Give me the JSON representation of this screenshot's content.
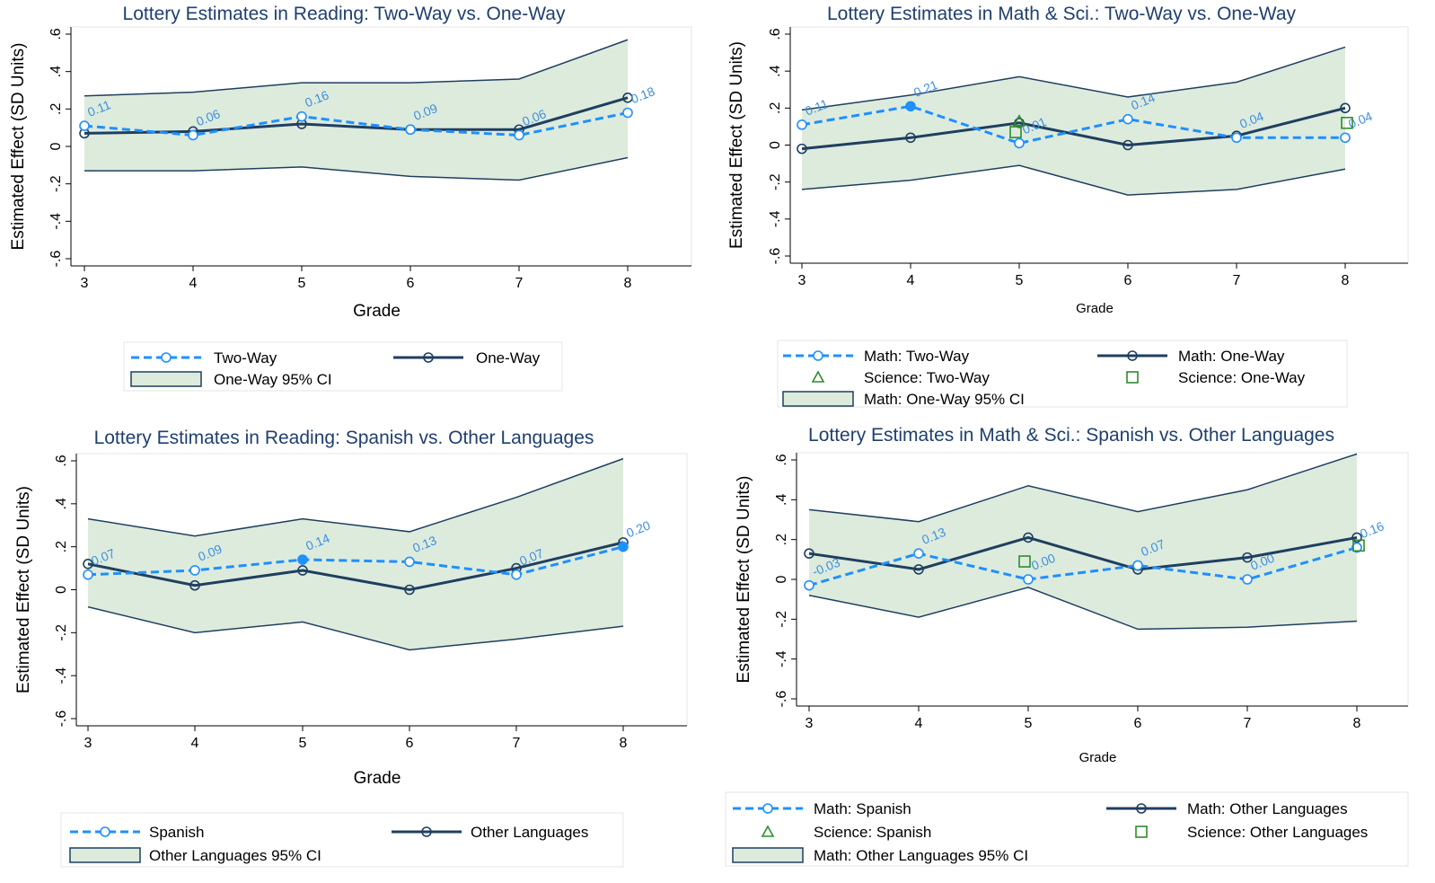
{
  "colors": {
    "two_way": "#1e90ff",
    "one_way": "#1f3f5f",
    "ci_fill": "#ddebdd",
    "ci_stroke": "#1f3f5f",
    "science_two": "#2e8b2e",
    "science_one": "#2e8b2e",
    "title": "#1f3f6f",
    "label": "#3c8fe0"
  },
  "chart_data": [
    {
      "type": "line",
      "title": "Lottery Estimates in Reading: Two-Way vs. One-Way",
      "xlabel": "Grade",
      "ylabel": "Estimated Effect (SD Units)",
      "ylim": [
        -0.6,
        0.6
      ],
      "yticks": [
        "-.6",
        "-.4",
        "-.2",
        "0",
        ".2",
        ".4",
        ".6"
      ],
      "x": [
        3,
        4,
        5,
        6,
        7,
        8
      ],
      "series": [
        {
          "name": "Two-Way",
          "role": "dashed",
          "values": [
            0.11,
            0.06,
            0.16,
            0.09,
            0.06,
            0.18
          ],
          "labels": [
            "0.11",
            "0.06",
            "0.16",
            "0.09",
            "0.06",
            "0.18"
          ],
          "filled": [
            false,
            false,
            false,
            false,
            false,
            false
          ]
        },
        {
          "name": "One-Way",
          "role": "solid",
          "values": [
            0.07,
            0.08,
            0.12,
            0.09,
            0.09,
            0.26
          ]
        }
      ],
      "ci": {
        "name": "One-Way 95% CI",
        "upper": [
          0.27,
          0.29,
          0.34,
          0.34,
          0.36,
          0.57
        ],
        "lower": [
          -0.13,
          -0.13,
          -0.11,
          -0.16,
          -0.18,
          -0.06
        ]
      },
      "legend": [
        {
          "type": "dashed",
          "label": "Two-Way"
        },
        {
          "type": "solid",
          "label": "One-Way"
        },
        {
          "type": "ci",
          "label": "One-Way 95% CI"
        }
      ]
    },
    {
      "type": "line",
      "title": "Lottery Estimates in Math & Sci.: Two-Way vs. One-Way",
      "xlabel": "Grade",
      "ylabel": "Estimated Effect (SD Units)",
      "ylim": [
        -0.6,
        0.6
      ],
      "yticks": [
        "-.6",
        "-.4",
        "-.2",
        "0",
        ".2",
        ".4",
        ".6"
      ],
      "x": [
        3,
        4,
        5,
        6,
        7,
        8
      ],
      "series": [
        {
          "name": "Math: Two-Way",
          "role": "dashed",
          "values": [
            0.11,
            0.21,
            0.01,
            0.14,
            0.04,
            0.04
          ],
          "labels": [
            "0.11",
            "0.21",
            "0.01",
            "0.14",
            "0.04",
            "0.04"
          ],
          "filled": [
            false,
            true,
            false,
            false,
            false,
            false
          ]
        },
        {
          "name": "Math: One-Way",
          "role": "solid",
          "values": [
            -0.02,
            0.04,
            0.12,
            0.0,
            0.05,
            0.2
          ]
        }
      ],
      "science": [
        {
          "name": "Science: Two-Way",
          "marker": "triangle",
          "x": [
            5
          ],
          "values": [
            0.13
          ]
        },
        {
          "name": "Science: One-Way",
          "marker": "square",
          "x": [
            5,
            8
          ],
          "values": [
            0.07,
            0.12
          ]
        }
      ],
      "ci": {
        "name": "Math: One-Way 95% CI",
        "upper": [
          0.19,
          0.27,
          0.37,
          0.26,
          0.34,
          0.53
        ],
        "lower": [
          -0.24,
          -0.19,
          -0.11,
          -0.27,
          -0.24,
          -0.13
        ]
      },
      "legend": [
        {
          "type": "dashed",
          "label": "Math: Two-Way"
        },
        {
          "type": "solid",
          "label": "Math: One-Way"
        },
        {
          "type": "triangle",
          "label": "Science: Two-Way"
        },
        {
          "type": "square",
          "label": "Science: One-Way"
        },
        {
          "type": "ci",
          "label": "Math: One-Way 95% CI"
        }
      ]
    },
    {
      "type": "line",
      "title": "Lottery Estimates in Reading: Spanish vs. Other Languages",
      "xlabel": "Grade",
      "ylabel": "Estimated Effect (SD Units)",
      "ylim": [
        -0.6,
        0.6
      ],
      "yticks": [
        "-.6",
        "-.4",
        "-.2",
        "0",
        ".2",
        ".4",
        ".6"
      ],
      "x": [
        3,
        4,
        5,
        6,
        7,
        8
      ],
      "series": [
        {
          "name": "Spanish",
          "role": "dashed",
          "values": [
            0.07,
            0.09,
            0.14,
            0.13,
            0.07,
            0.2
          ],
          "labels": [
            "0.07",
            "0.09",
            "0.14",
            "0.13",
            "0.07",
            "0.20"
          ],
          "filled": [
            false,
            false,
            true,
            false,
            false,
            true
          ]
        },
        {
          "name": "Other Languages",
          "role": "solid",
          "values": [
            0.12,
            0.02,
            0.09,
            0.0,
            0.1,
            0.22
          ]
        }
      ],
      "ci": {
        "name": "Other Languages 95% CI",
        "upper": [
          0.33,
          0.25,
          0.33,
          0.27,
          0.43,
          0.61
        ],
        "lower": [
          -0.08,
          -0.2,
          -0.15,
          -0.28,
          -0.23,
          -0.17
        ]
      },
      "legend": [
        {
          "type": "dashed",
          "label": "Spanish"
        },
        {
          "type": "solid",
          "label": "Other Languages"
        },
        {
          "type": "ci",
          "label": "Other Languages 95% CI"
        }
      ]
    },
    {
      "type": "line",
      "title": "Lottery Estimates in Math & Sci.: Spanish vs. Other Languages",
      "xlabel": "Grade",
      "ylabel": "Estimated Effect (SD Units)",
      "ylim": [
        -0.6,
        0.6
      ],
      "yticks": [
        "-.6",
        "-.4",
        "-.2",
        "0",
        ".2",
        ".4",
        ".6"
      ],
      "x": [
        3,
        4,
        5,
        6,
        7,
        8
      ],
      "series": [
        {
          "name": "Math: Spanish",
          "role": "dashed",
          "values": [
            -0.03,
            0.13,
            0.0,
            0.07,
            0.0,
            0.16
          ],
          "labels": [
            "-0.03",
            "0.13",
            "0.00",
            "0.07",
            "0.00",
            "0.16"
          ],
          "filled": [
            false,
            false,
            false,
            false,
            false,
            false
          ]
        },
        {
          "name": "Math: Other Languages",
          "role": "solid",
          "values": [
            0.13,
            0.05,
            0.21,
            0.05,
            0.11,
            0.21
          ]
        }
      ],
      "science": [
        {
          "name": "Science: Spanish",
          "marker": "triangle",
          "x": [],
          "values": []
        },
        {
          "name": "Science: Other Languages",
          "marker": "square",
          "x": [
            5,
            8
          ],
          "values": [
            0.09,
            0.17
          ]
        }
      ],
      "ci": {
        "name": "Math: Other Languages 95% CI",
        "upper": [
          0.35,
          0.29,
          0.47,
          0.34,
          0.45,
          0.63
        ],
        "lower": [
          -0.08,
          -0.19,
          -0.04,
          -0.25,
          -0.24,
          -0.21
        ]
      },
      "legend": [
        {
          "type": "dashed",
          "label": "Math: Spanish"
        },
        {
          "type": "solid",
          "label": "Math: Other Languages"
        },
        {
          "type": "triangle",
          "label": "Science: Spanish"
        },
        {
          "type": "square",
          "label": "Science: Other Languages"
        },
        {
          "type": "ci",
          "label": "Math: Other Languages 95% CI"
        }
      ]
    }
  ]
}
